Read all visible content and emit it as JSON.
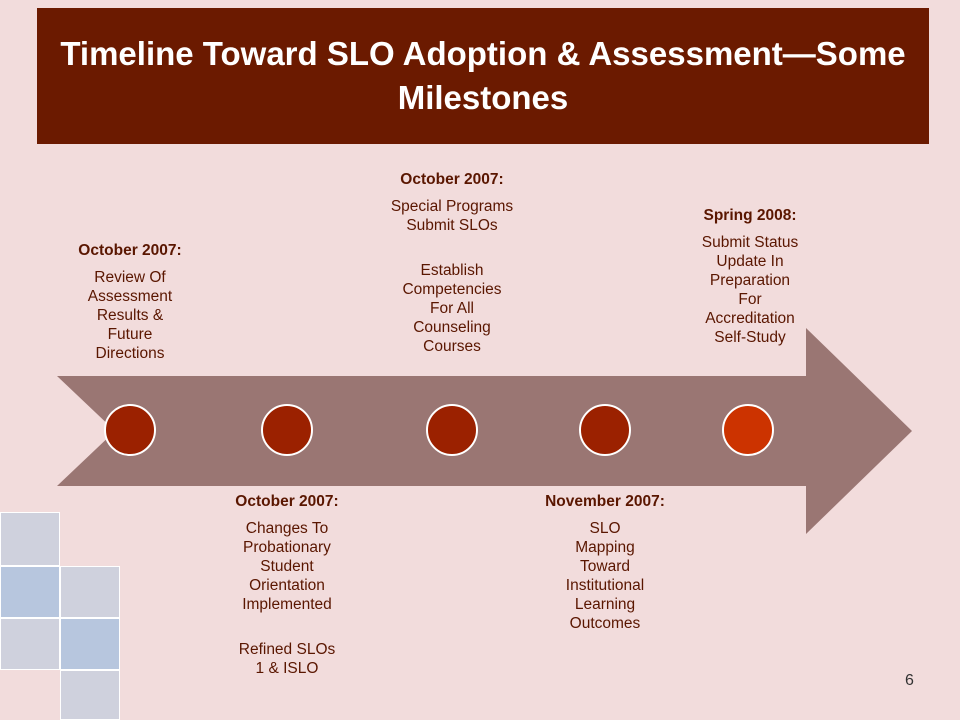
{
  "title": "Timeline Toward SLO Adoption & Assessment—Some Milestones",
  "colors": {
    "background": "#f2dcdc",
    "title_bar": "#6b1a00",
    "arrow": "#9a7673",
    "node": "#9b2100",
    "node_last": "#cc3300",
    "text": "#5a1600"
  },
  "milestones": [
    {
      "date": "October 2007:",
      "lines": [
        "Review Of",
        "Assessment",
        "Results &",
        "Future",
        "Directions"
      ]
    },
    {
      "date": "October 2007:",
      "lines": [
        "Changes To",
        "Probationary",
        "Student",
        "Orientation",
        "Implemented"
      ],
      "extra": [
        "Refined SLOs",
        "1 & ISLO"
      ]
    },
    {
      "date": "October 2007:",
      "lines": [
        "Special Programs",
        "Submit SLOs"
      ],
      "extra": [
        "Establish",
        "Competencies",
        "For All",
        "Counseling",
        "Courses"
      ]
    },
    {
      "date": "November 2007:",
      "lines": [
        "SLO",
        "Mapping",
        "Toward",
        "Institutional",
        "Learning",
        "Outcomes"
      ]
    },
    {
      "date": "Spring 2008:",
      "lines": [
        "Submit Status",
        "Update In",
        "Preparation",
        "For",
        "Accreditation",
        "Self-Study"
      ]
    }
  ],
  "page_number": "6"
}
